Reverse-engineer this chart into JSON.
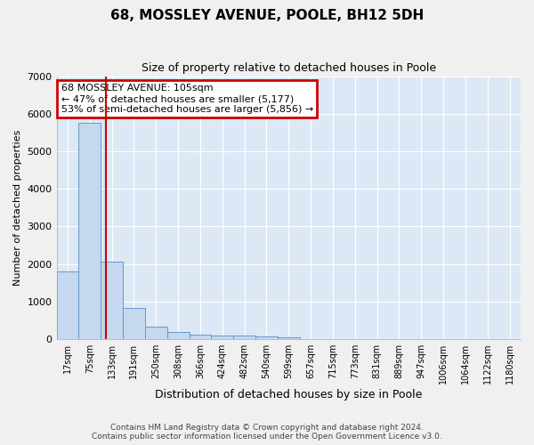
{
  "title": "68, MOSSLEY AVENUE, POOLE, BH12 5DH",
  "subtitle": "Size of property relative to detached houses in Poole",
  "xlabel": "Distribution of detached houses by size in Poole",
  "ylabel": "Number of detached properties",
  "categories": [
    "17sqm",
    "75sqm",
    "133sqm",
    "191sqm",
    "250sqm",
    "308sqm",
    "366sqm",
    "424sqm",
    "482sqm",
    "540sqm",
    "599sqm",
    "657sqm",
    "715sqm",
    "773sqm",
    "831sqm",
    "889sqm",
    "947sqm",
    "1006sqm",
    "1064sqm",
    "1122sqm",
    "1180sqm"
  ],
  "values": [
    1800,
    5750,
    2060,
    820,
    340,
    185,
    115,
    105,
    95,
    70,
    60,
    0,
    0,
    0,
    0,
    0,
    0,
    0,
    0,
    0,
    0
  ],
  "bar_color": "#c5d8f0",
  "bar_edge_color": "#6699cc",
  "vline_x": 1.72,
  "vline_color": "#cc0000",
  "annotation_title": "68 MOSSLEY AVENUE: 105sqm",
  "annotation_line1": "← 47% of detached houses are smaller (5,177)",
  "annotation_line2": "53% of semi-detached houses are larger (5,856) →",
  "annotation_box_color": "#cc0000",
  "ylim": [
    0,
    7000
  ],
  "yticks": [
    0,
    1000,
    2000,
    3000,
    4000,
    5000,
    6000,
    7000
  ],
  "background_color": "#f0f0f0",
  "plot_bg_color": "#dce8f5",
  "grid_color": "#ffffff",
  "footer1": "Contains HM Land Registry data © Crown copyright and database right 2024.",
  "footer2": "Contains public sector information licensed under the Open Government Licence v3.0."
}
